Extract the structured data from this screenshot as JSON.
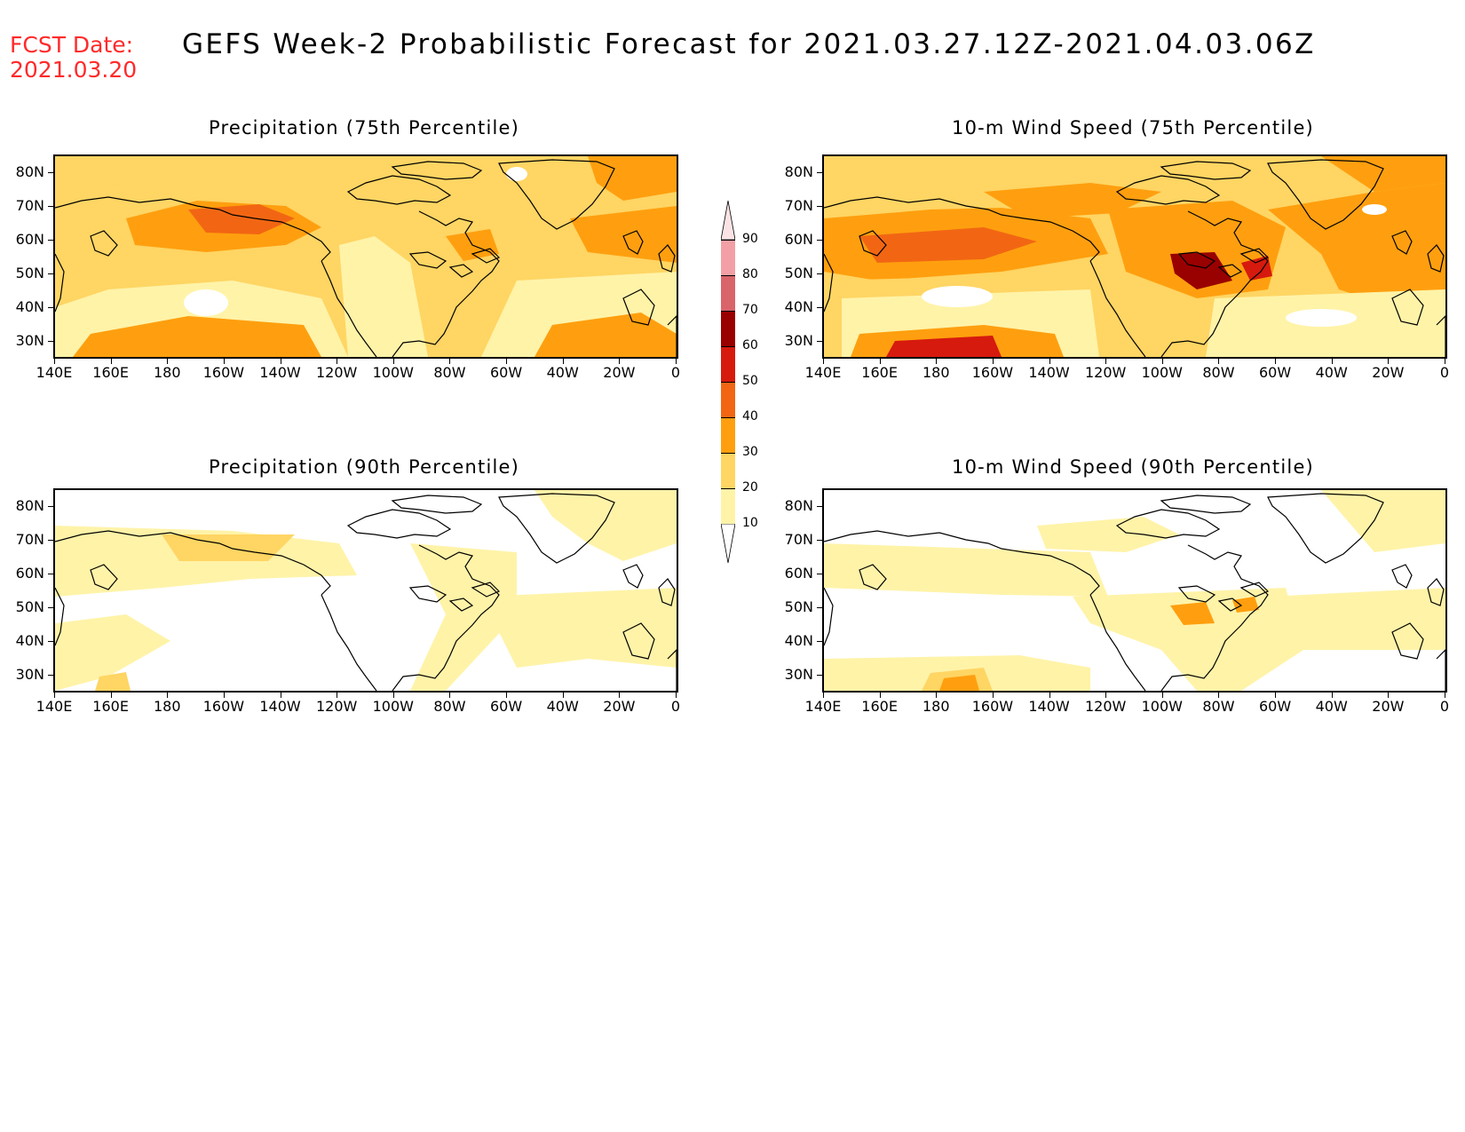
{
  "header": {
    "fcst_label": "FCST Date:",
    "fcst_date": "2021.03.20",
    "title": "GEFS Week-2 Probabilistic Forecast for 2021.03.27.12Z-2021.04.03.06Z"
  },
  "panels": [
    {
      "title": "Precipitation (75th Percentile)",
      "style": "p75"
    },
    {
      "title": "10-m Wind Speed (75th Percentile)",
      "style": "w75"
    },
    {
      "title": "Precipitation (90th Percentile)",
      "style": "p90"
    },
    {
      "title": "10-m Wind Speed (90th Percentile)",
      "style": "w90"
    }
  ],
  "axes": {
    "lat_labels": [
      "80N",
      "70N",
      "60N",
      "50N",
      "40N",
      "30N"
    ],
    "lon_labels": [
      "140E",
      "160E",
      "180",
      "160W",
      "140W",
      "120W",
      "100W",
      "80W",
      "60W",
      "40W",
      "20W",
      "0"
    ]
  },
  "colorbar": {
    "labels": [
      "90",
      "80",
      "70",
      "60",
      "50",
      "40",
      "30",
      "20",
      "10"
    ],
    "colors": [
      "#f2a0a6",
      "#d9646a",
      "#990000",
      "#d61a0e",
      "#f26613",
      "#ff9f0f",
      "#ffd563",
      "#fff3a8"
    ]
  }
}
